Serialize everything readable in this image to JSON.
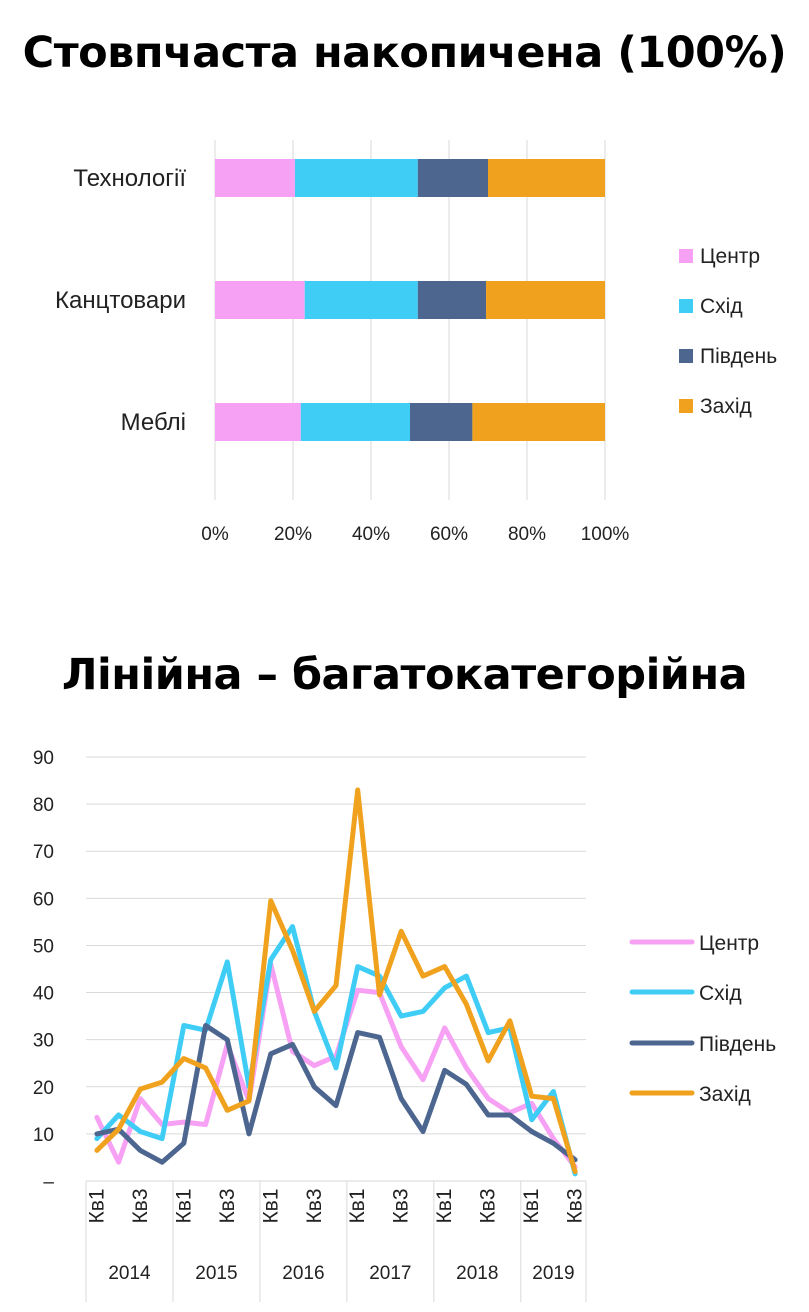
{
  "chart_data": [
    {
      "type": "bar",
      "stacked": "percent",
      "orientation": "horizontal",
      "title": "Стовпчаста накопичена (100%)",
      "categories": [
        "Технології",
        "Канцтовари",
        "Меблі"
      ],
      "series": [
        {
          "name": "Центр",
          "color": "#f7a1f4",
          "values": [
            20.5,
            23,
            22
          ]
        },
        {
          "name": "Схід",
          "color": "#3fcdf6",
          "values": [
            31.5,
            29,
            28
          ]
        },
        {
          "name": "Південь",
          "color": "#4c6690",
          "values": [
            18,
            17.5,
            16
          ]
        },
        {
          "name": "Захід",
          "color": "#f0a21e",
          "values": [
            30,
            30.5,
            34
          ]
        }
      ],
      "xticks": [
        "0%",
        "20%",
        "40%",
        "60%",
        "80%",
        "100%"
      ],
      "xlim": [
        0,
        100
      ],
      "grid": true,
      "legend": "right"
    },
    {
      "type": "line",
      "title": "Лінійна – багатокатегорійна",
      "years": [
        "2014",
        "2015",
        "2016",
        "2017",
        "2018",
        "2019"
      ],
      "quarter_labels": [
        "Кв1",
        "Кв3"
      ],
      "ylim": [
        0,
        90
      ],
      "yticks": [
        "–",
        "10",
        "20",
        "30",
        "40",
        "50",
        "60",
        "70",
        "80",
        "90"
      ],
      "grid": true,
      "legend": "right",
      "series": [
        {
          "name": "Центр",
          "color": "#f7a1f4",
          "values": [
            13.5,
            4,
            17.5,
            12,
            12.5,
            12,
            29,
            17,
            46,
            27.5,
            24.5,
            26.5,
            40.5,
            40,
            28.5,
            21.5,
            32.5,
            24,
            17.5,
            14.5,
            16.5,
            9,
            3
          ]
        },
        {
          "name": "Схід",
          "color": "#3fcdf6",
          "values": [
            9,
            14,
            10.5,
            9,
            33,
            32,
            46.5,
            20,
            47,
            54,
            36,
            24,
            45.5,
            43.5,
            35,
            36,
            41,
            43.5,
            31.5,
            32.5,
            13,
            19,
            1.5
          ]
        },
        {
          "name": "Південь",
          "color": "#4c6690",
          "values": [
            10,
            11,
            6.5,
            4,
            8,
            33,
            30,
            10,
            27,
            29,
            20,
            16,
            31.5,
            30.5,
            17.5,
            10.5,
            23.5,
            20.5,
            14,
            14,
            10.5,
            8,
            4.5
          ]
        },
        {
          "name": "Захід",
          "color": "#f0a21e",
          "values": [
            6.5,
            11,
            19.5,
            21,
            26,
            24,
            15,
            17,
            59.5,
            49,
            36,
            41.5,
            83,
            39.5,
            53,
            43.5,
            45.5,
            37.5,
            25.5,
            34,
            18,
            17.5,
            2
          ]
        }
      ]
    }
  ]
}
